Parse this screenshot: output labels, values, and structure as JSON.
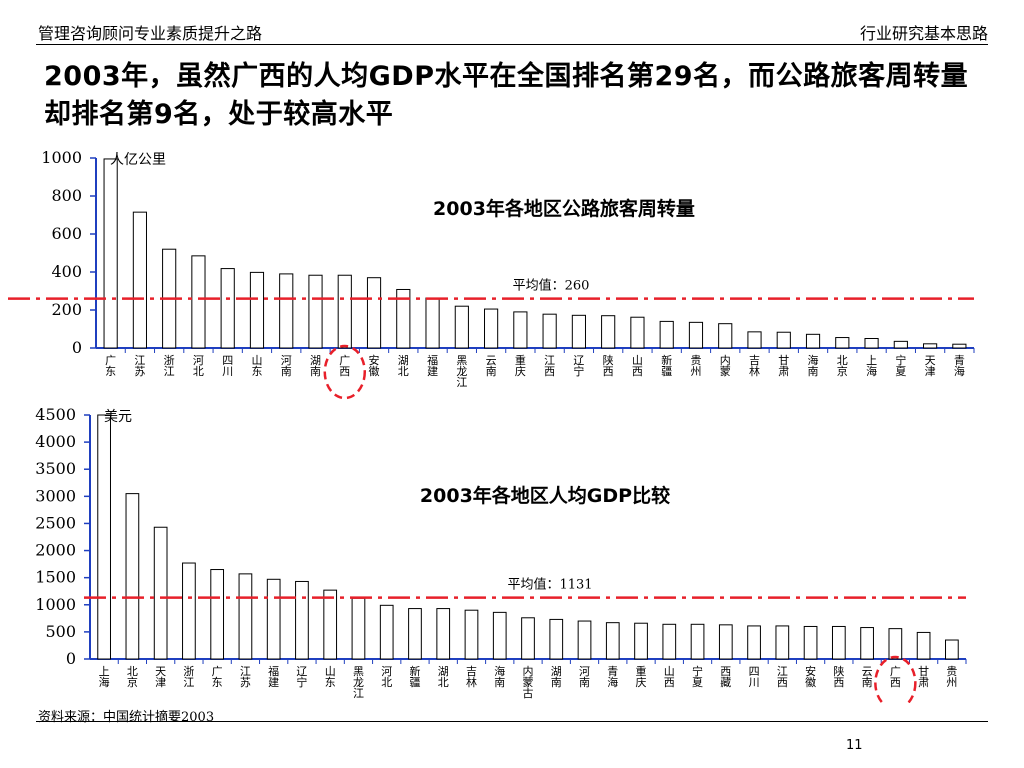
{
  "header": {
    "left": "管理咨询顾问专业素质提升之路",
    "right": "行业研究基本思路"
  },
  "title": "2003年，虽然广西的人均GDP水平在全国排名第29名，而公路旅客周转量却排名第9名，处于较高水平",
  "footer": {
    "source": "资料来源：中国统计摘要2003",
    "page": "11"
  },
  "colors": {
    "axis": "#1f3fbf",
    "avg_line": "#e8202a",
    "bar": "#ffffff",
    "bar_stroke": "#000000"
  },
  "chart_data": [
    {
      "type": "bar",
      "title": "2003年各地区公路旅客周转量",
      "unit": "人亿公里",
      "ylim": [
        0,
        1000
      ],
      "yticks": [
        0,
        200,
        400,
        600,
        800,
        1000
      ],
      "average": 260,
      "average_label": "平均值：260",
      "highlight": "广西",
      "categories": [
        "广东",
        "江苏",
        "浙江",
        "河北",
        "四川",
        "山东",
        "河南",
        "湖南",
        "广西",
        "安徽",
        "湖北",
        "福建",
        "黑龙江",
        "云南",
        "重庆",
        "江西",
        "辽宁",
        "陕西",
        "山西",
        "新疆",
        "贵州",
        "内蒙",
        "吉林",
        "甘肃",
        "海南",
        "北京",
        "上海",
        "宁夏",
        "天津",
        "青海"
      ],
      "values": [
        995,
        715,
        520,
        485,
        418,
        398,
        390,
        383,
        383,
        370,
        308,
        263,
        220,
        205,
        190,
        178,
        172,
        170,
        162,
        140,
        135,
        128,
        85,
        83,
        72,
        55,
        50,
        35,
        22,
        20
      ]
    },
    {
      "type": "bar",
      "title": "2003年各地区人均GDP比较",
      "unit": "美元",
      "ylim": [
        0,
        4500
      ],
      "yticks": [
        0,
        500,
        1000,
        1500,
        2000,
        2500,
        3000,
        3500,
        4000,
        4500
      ],
      "average": 1131,
      "average_label": "平均值：1131",
      "highlight": "广西",
      "categories": [
        "上海",
        "北京",
        "天津",
        "浙江",
        "广东",
        "江苏",
        "福建",
        "辽宁",
        "山东",
        "黑龙江",
        "河北",
        "新疆",
        "湖北",
        "吉林",
        "海南",
        "内蒙古",
        "湖南",
        "河南",
        "青海",
        "重庆",
        "山西",
        "宁夏",
        "西藏",
        "四川",
        "江西",
        "安徽",
        "陕西",
        "云南",
        "广西",
        "甘肃",
        "贵州"
      ],
      "values": [
        4500,
        3050,
        2430,
        1770,
        1650,
        1570,
        1470,
        1430,
        1270,
        1120,
        990,
        930,
        930,
        900,
        860,
        760,
        730,
        700,
        670,
        660,
        640,
        640,
        630,
        610,
        610,
        600,
        600,
        580,
        560,
        490,
        350
      ]
    }
  ]
}
